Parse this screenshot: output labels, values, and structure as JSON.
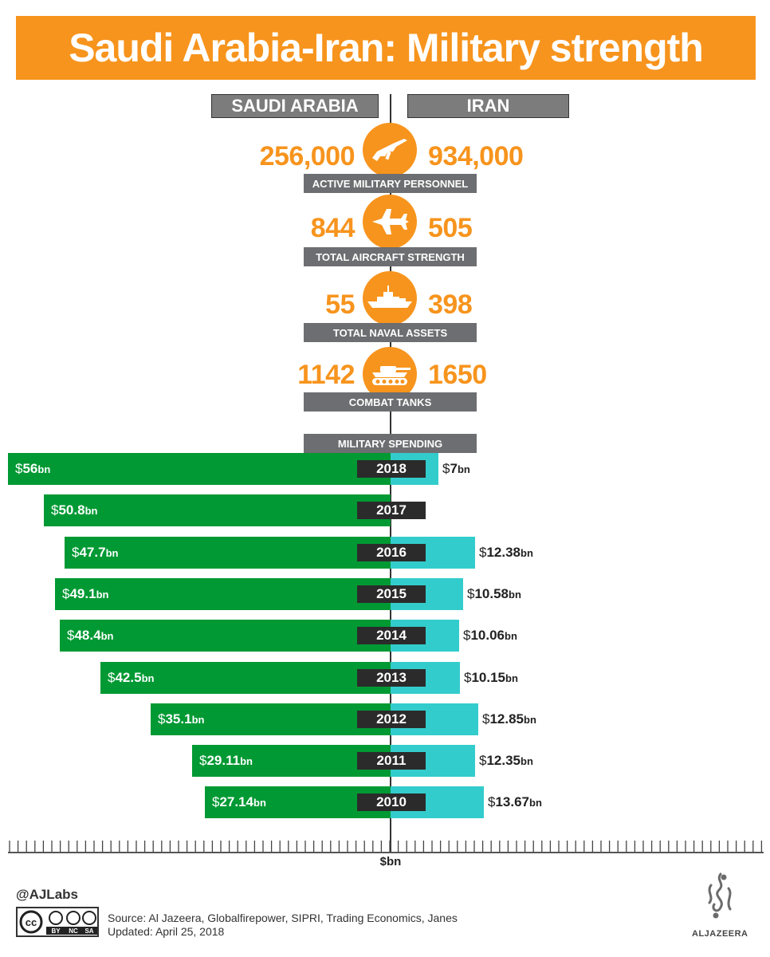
{
  "title": "Saudi Arabia-Iran: Military strength",
  "countries": {
    "left": "SAUDI ARABIA",
    "right": "IRAN"
  },
  "stats": [
    {
      "label": "ACTIVE MILITARY PERSONNEL",
      "saudi": "256,000",
      "iran": "934,000",
      "icon": "rifle-icon"
    },
    {
      "label": "TOTAL AIRCRAFT STRENGTH",
      "saudi": "844",
      "iran": "505",
      "icon": "fighter-jet-icon"
    },
    {
      "label": "TOTAL NAVAL ASSETS",
      "saudi": "55",
      "iran": "398",
      "icon": "warship-icon"
    },
    {
      "label": "COMBAT TANKS",
      "saudi": "1142",
      "iran": "1650",
      "icon": "tank-icon"
    }
  ],
  "spending_label": "MILITARY SPENDING",
  "chart_data": {
    "type": "bar",
    "title": "MILITARY SPENDING",
    "xlabel": "$bn",
    "categories": [
      "2018",
      "2017",
      "2016",
      "2015",
      "2014",
      "2013",
      "2012",
      "2011",
      "2010"
    ],
    "series": [
      {
        "name": "SAUDI ARABIA",
        "values": [
          56,
          50.8,
          47.7,
          49.1,
          48.4,
          42.5,
          35.1,
          29.11,
          27.14
        ],
        "labels": [
          "56",
          "50.8",
          "47.7",
          "49.1",
          "48.4",
          "42.5",
          "35.1",
          "29.11",
          "27.14"
        ]
      },
      {
        "name": "IRAN",
        "values": [
          7,
          null,
          12.38,
          10.58,
          10.06,
          10.15,
          12.85,
          12.35,
          13.67
        ],
        "labels": [
          "7",
          "",
          "12.38",
          "10.58",
          "10.06",
          "10.15",
          "12.85",
          "12.35",
          "13.67"
        ]
      }
    ],
    "currency": "$",
    "unit": "bn"
  },
  "colors": {
    "accent": "#f7941d",
    "saudi": "#009933",
    "iran": "#33cccc",
    "label_grey": "#6d6e71"
  },
  "footer": {
    "handle": "@AJLabs",
    "source": "Source: Al Jazeera, Globalfirepower, SIPRI, Trading Economics, Janes",
    "updated": "Updated: April 25, 2018",
    "license": [
      "BY",
      "NC",
      "SA"
    ],
    "brand": "ALJAZEERA"
  }
}
